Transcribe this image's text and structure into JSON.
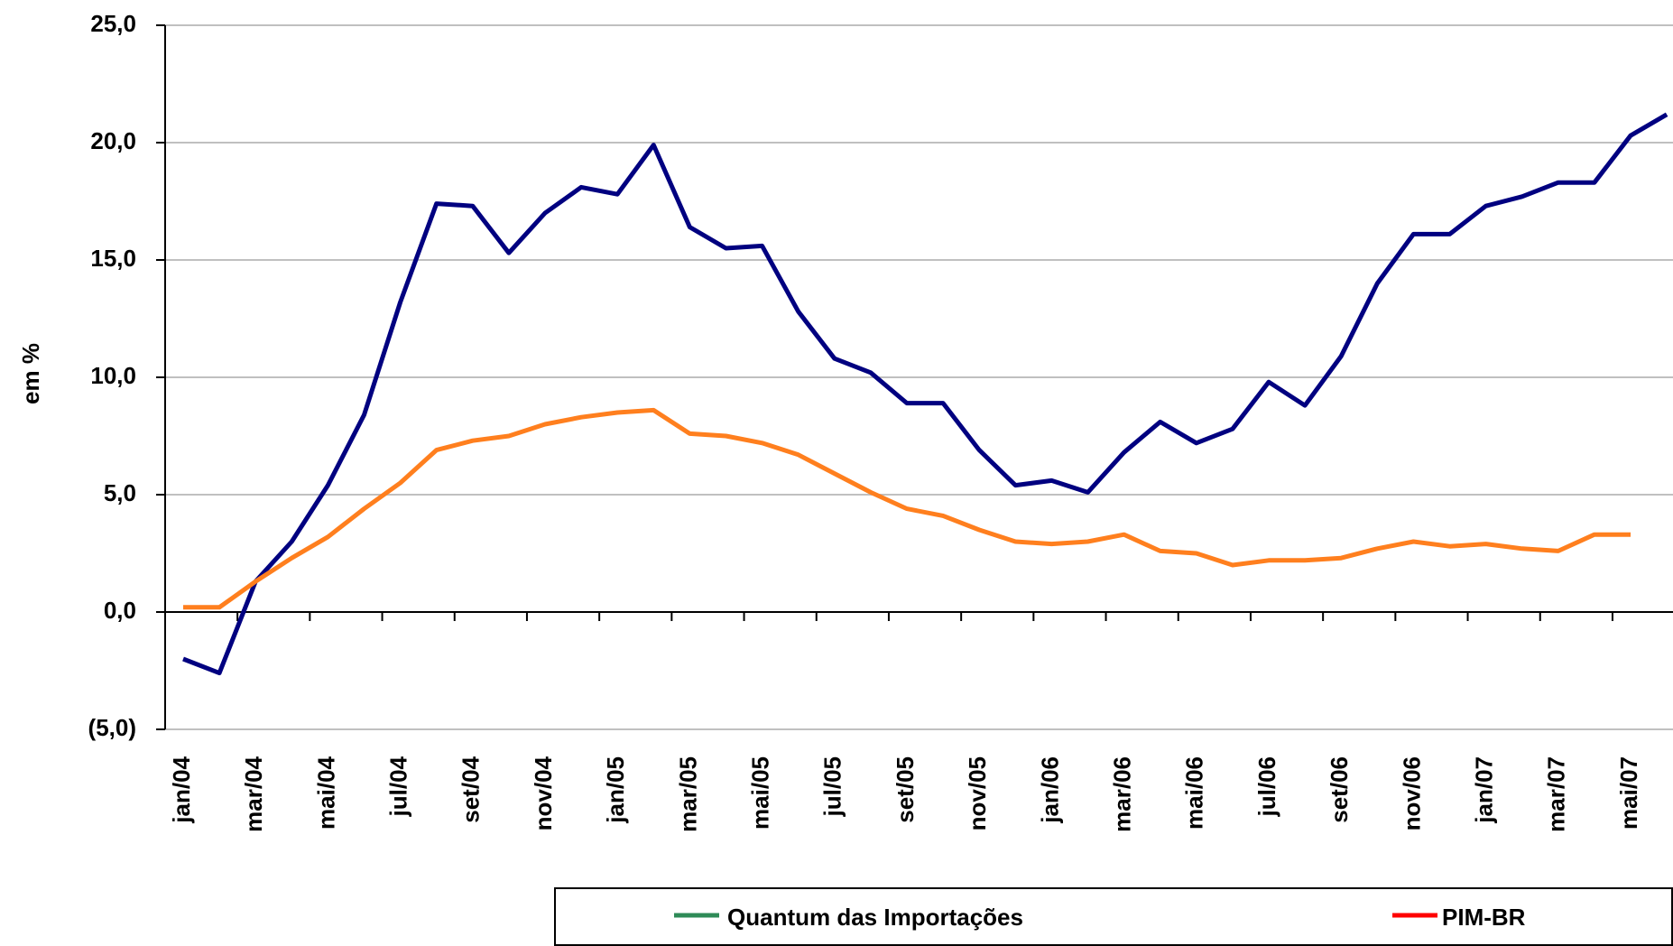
{
  "chart_data": {
    "type": "line",
    "y_label": "em %",
    "categories": [
      "jan/04",
      null,
      "mar/04",
      null,
      "mai/04",
      null,
      "jul/04",
      null,
      "set/04",
      null,
      "nov/04",
      null,
      "jan/05",
      null,
      "mar/05",
      null,
      "mai/05",
      null,
      "jul/05",
      null,
      "set/05",
      null,
      "nov/05",
      null,
      "jan/06",
      null,
      "mar/06",
      null,
      "mai/06",
      null,
      "jul/06",
      null,
      "set/06",
      null,
      "nov/06",
      null,
      "jan/07",
      null,
      "mar/07",
      null,
      "mai/07",
      null
    ],
    "series": [
      {
        "name": "Quantum das Importações",
        "color": "#000080",
        "legend_color": "#2e8b57",
        "values": [
          -2.0,
          -2.6,
          1.3,
          3.0,
          5.4,
          8.4,
          13.2,
          17.4,
          17.3,
          15.3,
          17.0,
          18.1,
          17.8,
          19.9,
          16.4,
          15.5,
          15.6,
          12.8,
          10.8,
          10.2,
          8.9,
          8.9,
          6.9,
          5.4,
          5.6,
          5.1,
          6.8,
          8.1,
          7.2,
          7.8,
          9.8,
          8.8,
          10.9,
          14.0,
          16.1,
          16.1,
          17.3,
          17.7,
          18.3,
          18.3,
          20.3,
          21.2
        ]
      },
      {
        "name": "PIM-BR",
        "color": "#ff7f1e",
        "legend_color": "#ff0000",
        "values": [
          0.2,
          0.2,
          1.3,
          2.3,
          3.2,
          4.4,
          5.5,
          6.9,
          7.3,
          7.5,
          8.0,
          8.3,
          8.5,
          8.6,
          7.6,
          7.5,
          7.2,
          6.7,
          5.9,
          5.1,
          4.4,
          4.1,
          3.5,
          3.0,
          2.9,
          3.0,
          3.3,
          2.6,
          2.5,
          2.0,
          2.2,
          2.2,
          2.3,
          2.7,
          3.0,
          2.8,
          2.9,
          2.7,
          2.6,
          3.3,
          3.3,
          null
        ]
      }
    ],
    "ylim": [
      -5,
      25
    ],
    "yticks": [
      {
        "value": -5,
        "label": "(5,0)"
      },
      {
        "value": 0,
        "label": "0,0"
      },
      {
        "value": 5,
        "label": "5,0"
      },
      {
        "value": 10,
        "label": "10,0"
      },
      {
        "value": 15,
        "label": "15,0"
      },
      {
        "value": 20,
        "label": "20,0"
      },
      {
        "value": 25,
        "label": "25,0"
      }
    ],
    "grid": true
  }
}
